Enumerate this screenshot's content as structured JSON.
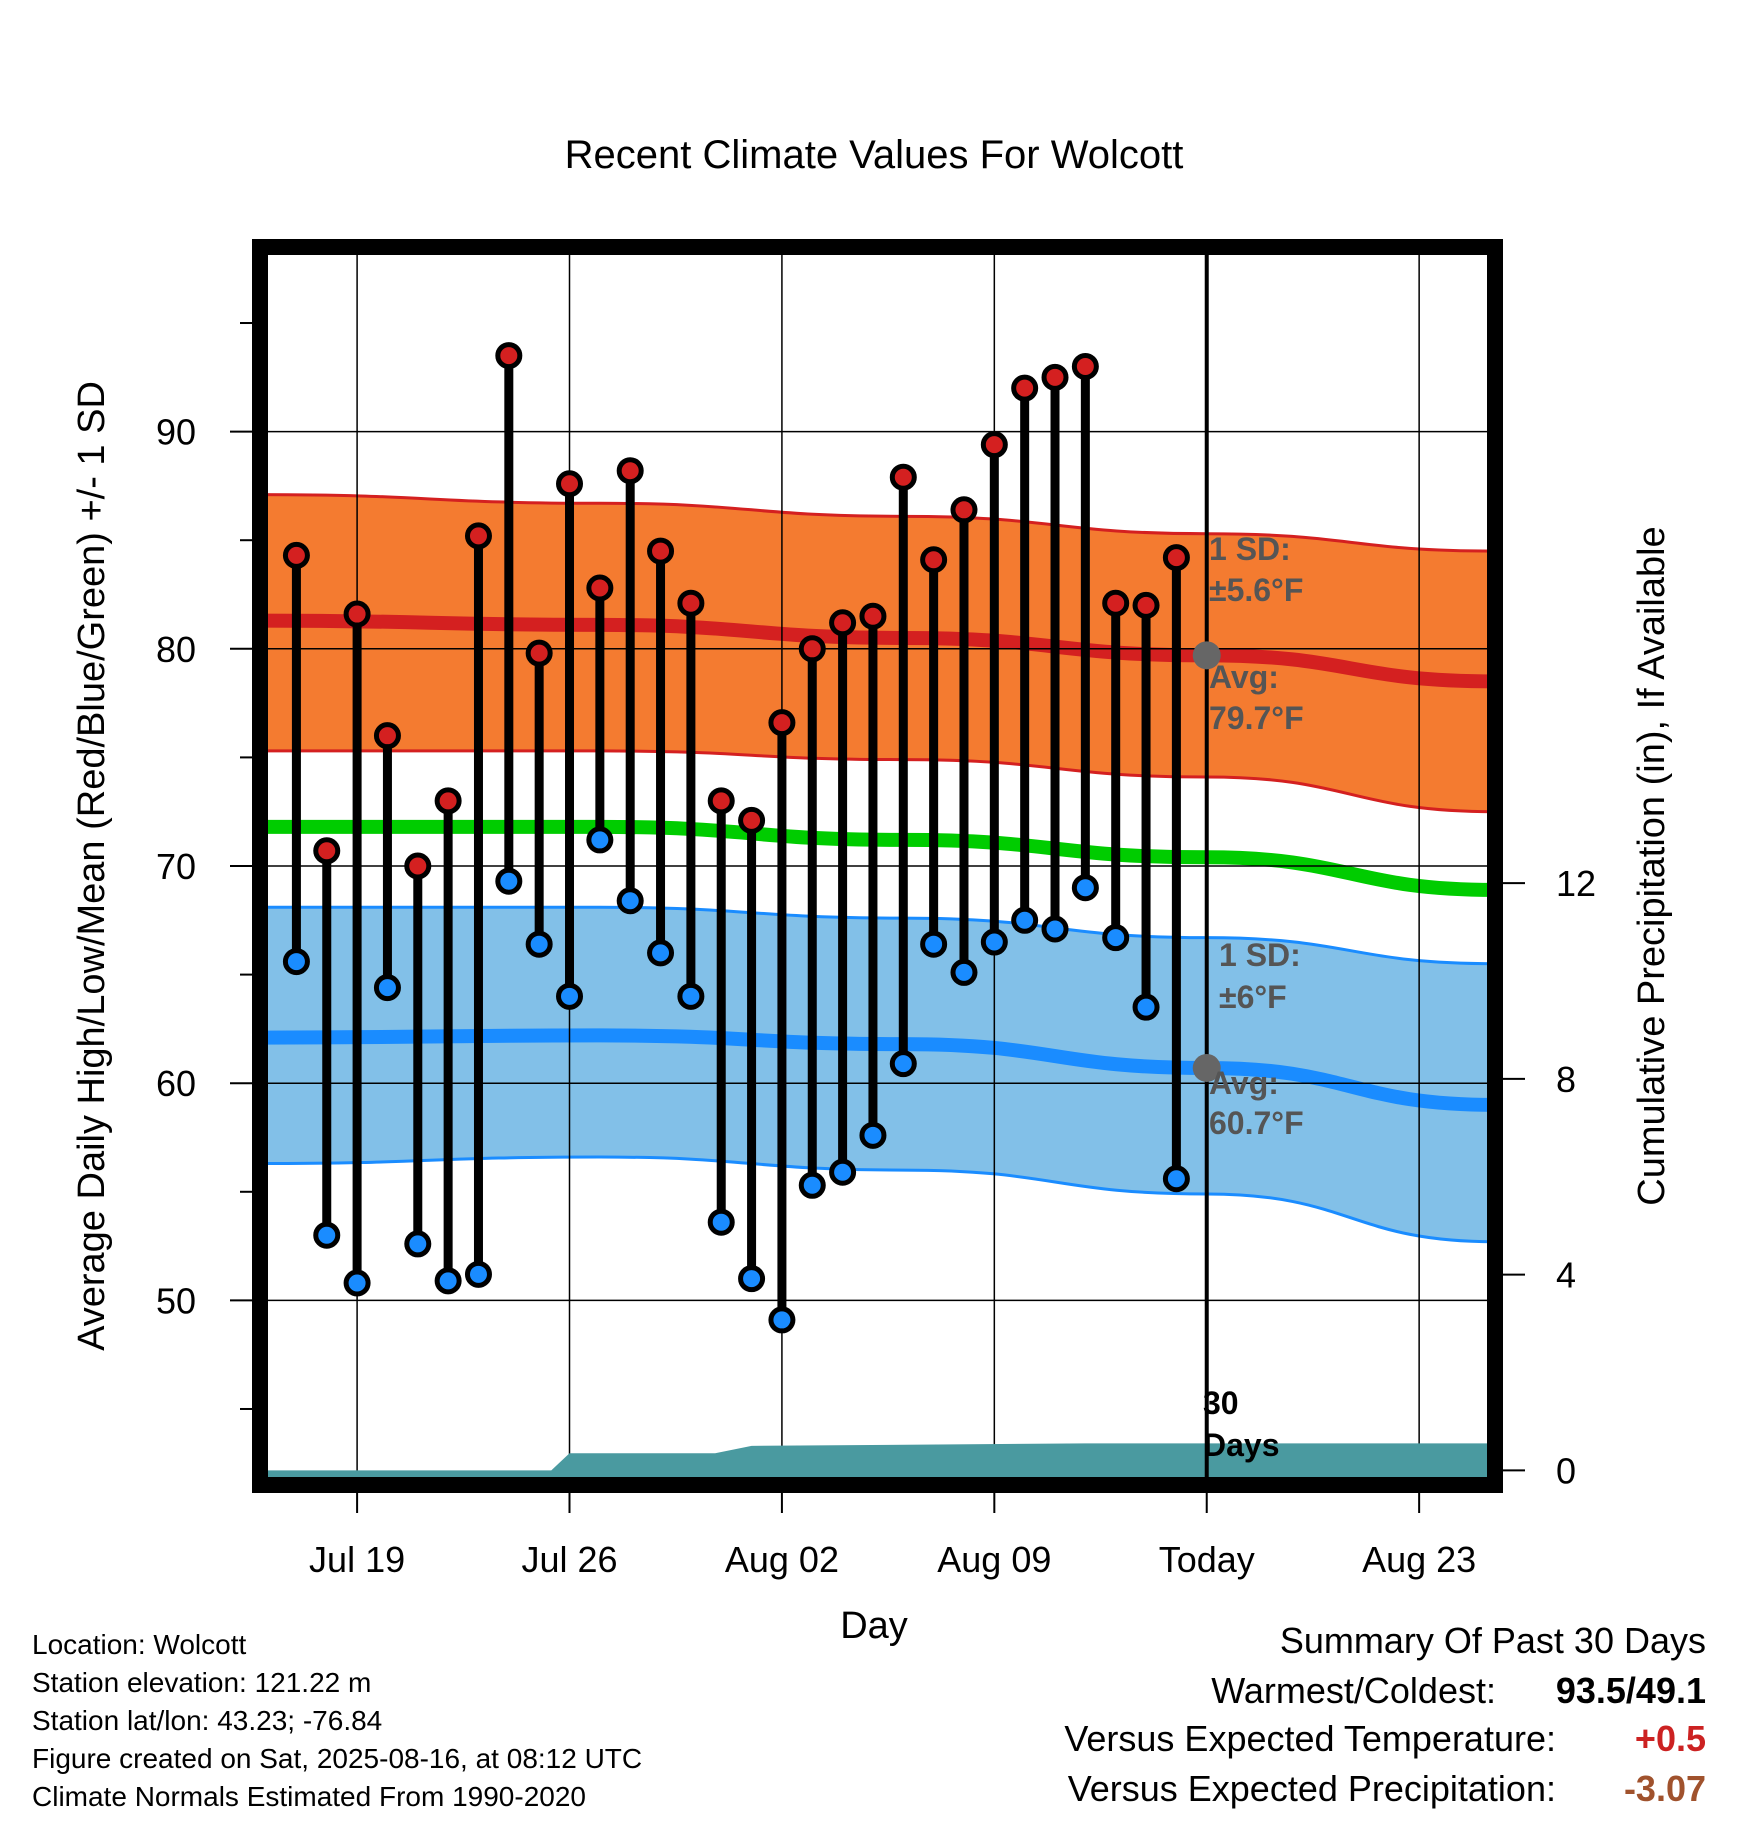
{
  "title": "Recent Climate Values For Wolcott",
  "xlabel": "Day",
  "ylabel_left": "Average Daily High/Low/Mean (Red/Blue/Green) +/- 1 SD",
  "ylabel_right": "Cumulative Precipitation (in), If Available",
  "annotations": {
    "high_sd_l1": "1 SD:",
    "high_sd_l2": "±5.6°F",
    "high_avg_l1": "Avg:",
    "high_avg_l2": "79.7°F",
    "low_sd_l1": "1 SD:",
    "low_sd_l2": "±6°F",
    "low_avg_l1": "Avg:",
    "low_avg_l2": "60.7°F",
    "days_l1": "30",
    "days_l2": "Days"
  },
  "info": {
    "location": "Location: Wolcott",
    "elevation": "Station elevation: 121.22 m",
    "latlon": "Station lat/lon: 43.23; -76.84",
    "created": "Figure created on Sat, 2025-08-16, at 08:12 UTC",
    "normals": "Climate Normals Estimated From 1990-2020"
  },
  "summary": {
    "heading": "Summary Of Past 30 Days",
    "warm_cold_label": "Warmest/Coldest:",
    "warm_cold_value": "93.5/49.1",
    "temp_label": "Versus Expected Temperature:",
    "temp_value": "+0.5",
    "precip_label": "Versus Expected Precipitation:",
    "precip_value": "-3.07"
  },
  "colors": {
    "high_band": "#f47b30",
    "high_mean": "#d42020",
    "low_band": "#82c0e8",
    "low_mean": "#1a8cff",
    "mean_temp": "#00cc00",
    "precip": "#4a9aa0",
    "temp_positive": "#cc2222",
    "precip_negative": "#a0522d"
  },
  "chart_data": {
    "type": "line",
    "title": "Recent Climate Values For Wolcott",
    "xlabel": "Day",
    "x_ticks": [
      "Jul 19",
      "Jul 26",
      "Aug 02",
      "Aug 09",
      "Today",
      "Aug 23"
    ],
    "x_tick_days": [
      -28,
      -21,
      -14,
      -7,
      0,
      7
    ],
    "xlim_days": [
      -31.2,
      9.5
    ],
    "ylim_left": [
      41.5,
      98.5
    ],
    "y_ticks_left": [
      50,
      60,
      70,
      80,
      90
    ],
    "y_ticks_right": [
      0,
      4,
      8,
      12
    ],
    "ylim_right": [
      -0.3,
      25.0
    ],
    "today_day": 0,
    "daily_days": [
      -30,
      -29,
      -28,
      -27,
      -26,
      -25,
      -24,
      -23,
      -22,
      -21,
      -20,
      -19,
      -18,
      -17,
      -16,
      -15,
      -14,
      -13,
      -12,
      -11,
      -10,
      -9,
      -8,
      -7,
      -6,
      -5,
      -4,
      -3,
      -2,
      -1
    ],
    "daily_high": [
      84.3,
      70.7,
      81.6,
      76.0,
      70.0,
      73.0,
      85.2,
      93.5,
      79.8,
      87.6,
      82.8,
      88.2,
      84.5,
      82.1,
      73.0,
      72.1,
      76.6,
      80.0,
      81.2,
      81.5,
      87.9,
      84.1,
      86.4,
      89.4,
      92.0,
      92.5,
      93.0,
      82.1,
      82.0,
      84.2
    ],
    "daily_low": [
      65.6,
      53.0,
      50.8,
      64.4,
      52.6,
      50.9,
      51.2,
      69.3,
      66.4,
      64.0,
      71.2,
      68.4,
      66.0,
      64.0,
      53.6,
      51.0,
      49.1,
      55.3,
      55.9,
      57.6,
      60.9,
      66.4,
      65.1,
      66.5,
      67.5,
      67.1,
      69.0,
      66.7,
      63.5,
      55.6
    ],
    "normal_days": [
      -31.2,
      -20,
      -10,
      0,
      9.5
    ],
    "normal_high_mean": [
      81.3,
      81.1,
      80.5,
      79.7,
      78.5
    ],
    "normal_high_upper": [
      87.1,
      86.7,
      86.1,
      85.3,
      84.5
    ],
    "normal_high_lower": [
      75.3,
      75.3,
      74.9,
      74.1,
      72.5
    ],
    "normal_mean_temp": [
      71.8,
      71.8,
      71.2,
      70.4,
      68.9
    ],
    "normal_low_mean": [
      62.1,
      62.2,
      61.8,
      60.7,
      59.0
    ],
    "normal_low_upper": [
      68.1,
      68.1,
      67.6,
      66.7,
      65.5
    ],
    "normal_low_lower": [
      56.3,
      56.6,
      56.0,
      54.9,
      52.7
    ],
    "precip_days": [
      -31.2,
      -21.6,
      -21,
      -16.2,
      -15,
      -4,
      9.5
    ],
    "precip_cum": [
      0,
      0,
      0.35,
      0.35,
      0.5,
      0.55,
      0.55
    ],
    "series": [
      {
        "name": "Red",
        "key": "daily_high"
      },
      {
        "name": "Blue",
        "key": "daily_low"
      },
      {
        "name": "Green",
        "key": "normal_mean_temp"
      }
    ]
  }
}
